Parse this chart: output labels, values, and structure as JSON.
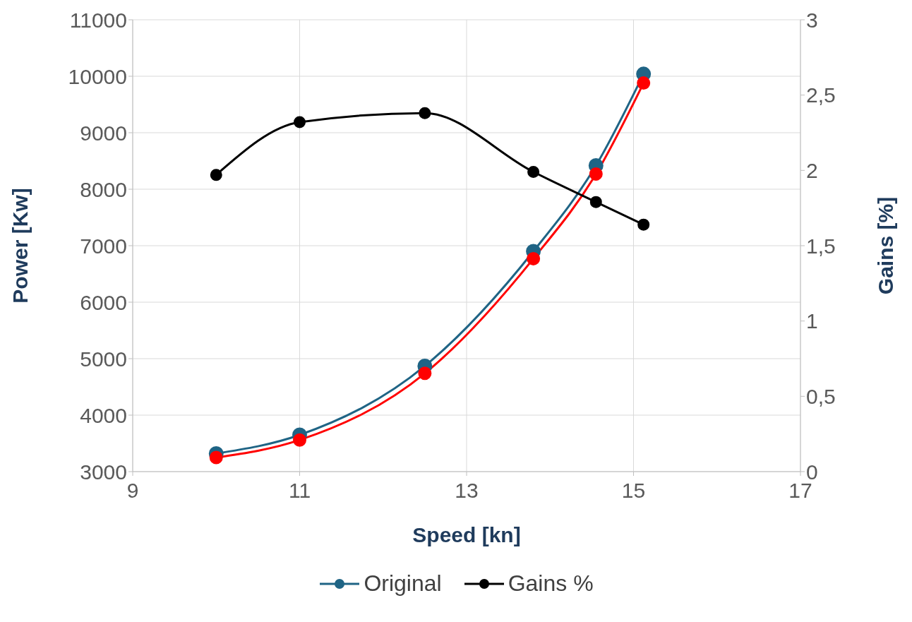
{
  "chart_data": {
    "type": "line",
    "xlabel": "Speed [kn]",
    "ylabel": "Power  [Kw]",
    "y2label": "Gains [%]",
    "xlim": [
      9,
      17
    ],
    "xticks": [
      9,
      11,
      13,
      15,
      17
    ],
    "ylim": [
      3000,
      11000
    ],
    "yticks": [
      3000,
      4000,
      5000,
      6000,
      7000,
      8000,
      9000,
      10000,
      11000
    ],
    "y2lim": [
      0,
      3
    ],
    "y2ticks": [
      0,
      {
        "value": 0.5,
        "label": "0,5"
      },
      1,
      {
        "value": 1.5,
        "label": "1,5"
      },
      2,
      {
        "value": 2.5,
        "label": "2,5"
      },
      3
    ],
    "x": [
      10,
      11,
      12.5,
      13.8,
      14.55,
      15.12
    ],
    "series": [
      {
        "name": "Original",
        "color": "#1f6485",
        "values": [
          3320,
          3650,
          4870,
          6900,
          8420,
          10040
        ]
      },
      {
        "color": "#ff0000",
        "values": [
          3250,
          3560,
          4740,
          6770,
          8270,
          9880
        ]
      },
      {
        "name": "Gains %",
        "color": "#000000",
        "axis": "y2",
        "values": [
          1.97,
          2.32,
          2.38,
          1.99,
          1.79,
          1.64
        ]
      }
    ],
    "grid": true,
    "legend": "bottom",
    "marker": "circle",
    "line_style": "solid"
  }
}
